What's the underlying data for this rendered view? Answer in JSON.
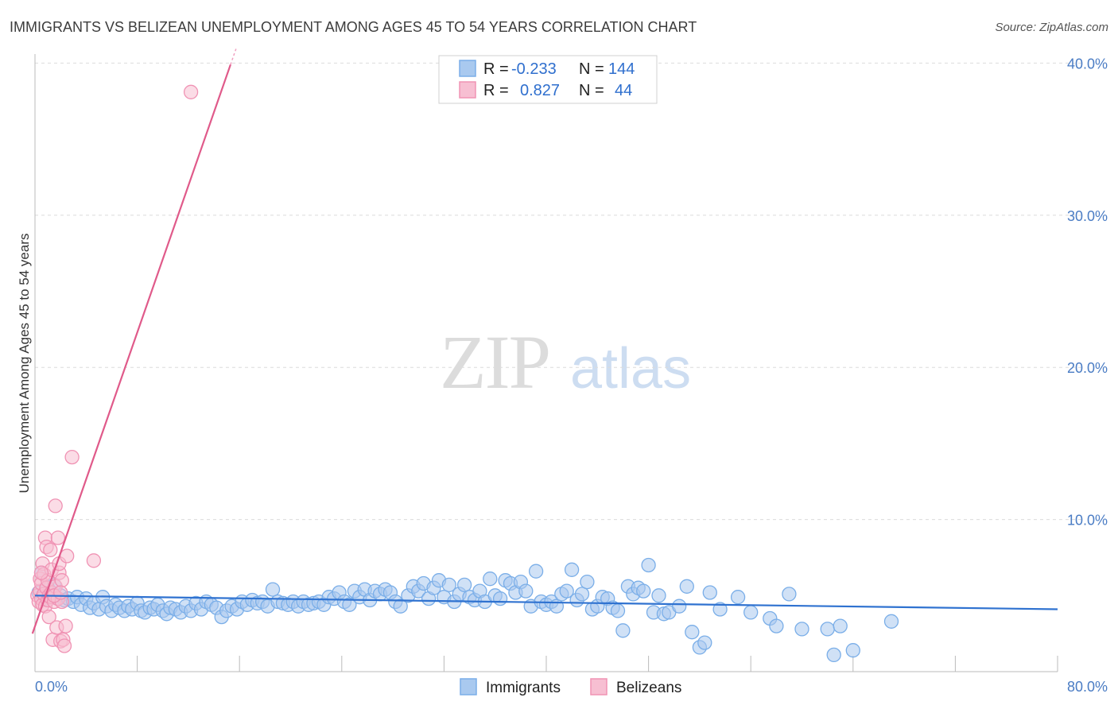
{
  "chart_data": {
    "type": "scatter",
    "title": "IMMIGRANTS VS BELIZEAN UNEMPLOYMENT AMONG AGES 45 TO 54 YEARS CORRELATION CHART",
    "source": "Source: ZipAtlas.com",
    "xlabel": "",
    "ylabel": "Unemployment Among Ages 45 to 54 years",
    "xlim": [
      0,
      80
    ],
    "ylim": [
      0,
      42
    ],
    "x_tick_labels": [
      "0.0%",
      "80.0%"
    ],
    "y_ticks": [
      10,
      20,
      30,
      40
    ],
    "y_tick_labels": [
      "10.0%",
      "20.0%",
      "30.0%",
      "40.0%"
    ],
    "watermark": {
      "zip": "ZIP",
      "atlas": "atlas"
    },
    "legend": {
      "r_label": "R =",
      "n_label": "N =",
      "entries": [
        {
          "name": "Immigrants",
          "r": "-0.233",
          "n": "144"
        },
        {
          "name": "Belizeans",
          "r": "0.827",
          "n": "44"
        }
      ]
    },
    "series": [
      {
        "name": "Immigrants",
        "color": "#7aaee8",
        "fill": "#a9c9ef",
        "line_color": "#2f72d0",
        "trend": {
          "x": [
            0,
            80
          ],
          "y": [
            5.0,
            4.1
          ]
        },
        "points": [
          [
            0.3,
            5.2
          ],
          [
            0.5,
            6.5
          ],
          [
            0.6,
            5.0
          ],
          [
            0.8,
            4.8
          ],
          [
            1.0,
            5.5
          ],
          [
            1.2,
            4.9
          ],
          [
            1.5,
            5.7
          ],
          [
            1.8,
            4.8
          ],
          [
            2.0,
            5.0
          ],
          [
            2.3,
            4.7
          ],
          [
            2.6,
            4.8
          ],
          [
            3.0,
            4.6
          ],
          [
            3.3,
            4.9
          ],
          [
            3.6,
            4.4
          ],
          [
            4.0,
            4.8
          ],
          [
            4.3,
            4.2
          ],
          [
            4.6,
            4.5
          ],
          [
            5.0,
            4.1
          ],
          [
            5.3,
            4.9
          ],
          [
            5.6,
            4.3
          ],
          [
            6.0,
            4.0
          ],
          [
            6.3,
            4.4
          ],
          [
            6.6,
            4.2
          ],
          [
            7.0,
            4.0
          ],
          [
            7.3,
            4.3
          ],
          [
            7.6,
            4.1
          ],
          [
            8.0,
            4.5
          ],
          [
            8.3,
            4.0
          ],
          [
            8.6,
            3.9
          ],
          [
            9.0,
            4.2
          ],
          [
            9.3,
            4.1
          ],
          [
            9.6,
            4.4
          ],
          [
            10.0,
            4.0
          ],
          [
            10.3,
            3.8
          ],
          [
            10.6,
            4.2
          ],
          [
            11.0,
            4.1
          ],
          [
            11.4,
            3.9
          ],
          [
            11.8,
            4.3
          ],
          [
            12.2,
            4.0
          ],
          [
            12.6,
            4.5
          ],
          [
            13.0,
            4.1
          ],
          [
            13.4,
            4.6
          ],
          [
            13.8,
            4.4
          ],
          [
            14.2,
            4.2
          ],
          [
            14.6,
            3.6
          ],
          [
            15.0,
            4.0
          ],
          [
            15.4,
            4.3
          ],
          [
            15.8,
            4.1
          ],
          [
            16.2,
            4.6
          ],
          [
            16.6,
            4.4
          ],
          [
            17.0,
            4.7
          ],
          [
            17.4,
            4.5
          ],
          [
            17.8,
            4.6
          ],
          [
            18.2,
            4.3
          ],
          [
            18.6,
            5.4
          ],
          [
            19.0,
            4.6
          ],
          [
            19.4,
            4.5
          ],
          [
            19.8,
            4.4
          ],
          [
            20.2,
            4.6
          ],
          [
            20.6,
            4.3
          ],
          [
            21.0,
            4.6
          ],
          [
            21.4,
            4.4
          ],
          [
            21.8,
            4.5
          ],
          [
            22.2,
            4.6
          ],
          [
            22.6,
            4.4
          ],
          [
            23.0,
            4.9
          ],
          [
            23.4,
            4.8
          ],
          [
            23.8,
            5.2
          ],
          [
            24.2,
            4.6
          ],
          [
            24.6,
            4.4
          ],
          [
            25.0,
            5.3
          ],
          [
            25.4,
            4.9
          ],
          [
            25.8,
            5.4
          ],
          [
            26.2,
            4.7
          ],
          [
            26.6,
            5.3
          ],
          [
            27.0,
            5.1
          ],
          [
            27.4,
            5.4
          ],
          [
            27.8,
            5.2
          ],
          [
            28.2,
            4.6
          ],
          [
            28.6,
            4.3
          ],
          [
            29.2,
            5.0
          ],
          [
            29.6,
            5.6
          ],
          [
            30.0,
            5.3
          ],
          [
            30.4,
            5.8
          ],
          [
            30.8,
            4.8
          ],
          [
            31.2,
            5.5
          ],
          [
            31.6,
            6.0
          ],
          [
            32.0,
            4.9
          ],
          [
            32.4,
            5.7
          ],
          [
            32.8,
            4.6
          ],
          [
            33.2,
            5.1
          ],
          [
            33.6,
            5.7
          ],
          [
            34.0,
            4.9
          ],
          [
            34.4,
            4.7
          ],
          [
            34.8,
            5.3
          ],
          [
            35.2,
            4.6
          ],
          [
            35.6,
            6.1
          ],
          [
            36.0,
            5.0
          ],
          [
            36.4,
            4.8
          ],
          [
            36.8,
            6.0
          ],
          [
            37.2,
            5.8
          ],
          [
            37.6,
            5.2
          ],
          [
            38.0,
            5.9
          ],
          [
            38.4,
            5.3
          ],
          [
            38.8,
            4.3
          ],
          [
            39.2,
            6.6
          ],
          [
            39.6,
            4.6
          ],
          [
            40.0,
            4.4
          ],
          [
            40.4,
            4.6
          ],
          [
            40.8,
            4.3
          ],
          [
            41.2,
            5.1
          ],
          [
            41.6,
            5.3
          ],
          [
            42.0,
            6.7
          ],
          [
            42.4,
            4.7
          ],
          [
            42.8,
            5.1
          ],
          [
            43.2,
            5.9
          ],
          [
            43.6,
            4.1
          ],
          [
            44.0,
            4.3
          ],
          [
            44.4,
            4.9
          ],
          [
            44.8,
            4.8
          ],
          [
            45.2,
            4.2
          ],
          [
            45.6,
            4.0
          ],
          [
            46.0,
            2.7
          ],
          [
            46.4,
            5.6
          ],
          [
            46.8,
            5.1
          ],
          [
            47.2,
            5.5
          ],
          [
            47.6,
            5.3
          ],
          [
            48.0,
            7.0
          ],
          [
            48.4,
            3.9
          ],
          [
            48.8,
            5.0
          ],
          [
            49.2,
            3.8
          ],
          [
            49.6,
            3.9
          ],
          [
            50.4,
            4.3
          ],
          [
            51.0,
            5.6
          ],
          [
            51.4,
            2.6
          ],
          [
            52.0,
            1.6
          ],
          [
            52.4,
            1.9
          ],
          [
            52.8,
            5.2
          ],
          [
            53.6,
            4.1
          ],
          [
            55.0,
            4.9
          ],
          [
            56.0,
            3.9
          ],
          [
            57.5,
            3.5
          ],
          [
            58.0,
            3.0
          ],
          [
            59.0,
            5.1
          ],
          [
            60.0,
            2.8
          ],
          [
            62.0,
            2.8
          ],
          [
            62.5,
            1.1
          ],
          [
            63.0,
            3.0
          ],
          [
            64.0,
            1.4
          ],
          [
            67.0,
            3.3
          ]
        ]
      },
      {
        "name": "Belizeans",
        "color": "#f093b4",
        "fill": "#f7bfd2",
        "line_color": "#e05a8a",
        "trend": {
          "x": [
            -0.2,
            15.3
          ],
          "y": [
            2.5,
            39.9
          ]
        },
        "points": [
          [
            0.2,
            5.0
          ],
          [
            0.3,
            4.6
          ],
          [
            0.4,
            5.3
          ],
          [
            0.4,
            6.1
          ],
          [
            0.5,
            4.8
          ],
          [
            0.5,
            5.8
          ],
          [
            0.6,
            4.4
          ],
          [
            0.6,
            7.1
          ],
          [
            0.7,
            5.1
          ],
          [
            0.7,
            6.4
          ],
          [
            0.8,
            4.3
          ],
          [
            0.8,
            8.8
          ],
          [
            0.9,
            5.5
          ],
          [
            0.9,
            8.2
          ],
          [
            1.0,
            4.7
          ],
          [
            1.0,
            6.0
          ],
          [
            1.1,
            3.6
          ],
          [
            1.1,
            5.0
          ],
          [
            1.2,
            4.9
          ],
          [
            1.2,
            8.0
          ],
          [
            1.3,
            5.2
          ],
          [
            1.3,
            6.7
          ],
          [
            1.4,
            2.1
          ],
          [
            1.5,
            4.6
          ],
          [
            1.6,
            5.6
          ],
          [
            1.6,
            10.9
          ],
          [
            1.7,
            2.9
          ],
          [
            1.8,
            4.8
          ],
          [
            1.8,
            8.8
          ],
          [
            1.9,
            6.5
          ],
          [
            1.9,
            7.1
          ],
          [
            2.0,
            2.0
          ],
          [
            2.1,
            4.6
          ],
          [
            2.1,
            6.0
          ],
          [
            2.2,
            2.1
          ],
          [
            2.3,
            1.7
          ],
          [
            2.4,
            3.0
          ],
          [
            2.5,
            7.6
          ],
          [
            2.9,
            14.1
          ],
          [
            4.6,
            7.3
          ],
          [
            12.2,
            38.1
          ],
          [
            0.5,
            6.5
          ],
          [
            1.5,
            5.0
          ],
          [
            2.0,
            5.2
          ]
        ]
      }
    ]
  }
}
